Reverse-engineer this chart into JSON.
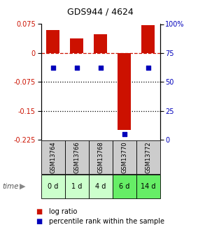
{
  "title": "GDS944 / 4624",
  "categories": [
    "GSM13764",
    "GSM13766",
    "GSM13768",
    "GSM13770",
    "GSM13772"
  ],
  "time_labels": [
    "0 d",
    "1 d",
    "4 d",
    "6 d",
    "14 d"
  ],
  "log_ratios": [
    0.06,
    0.038,
    0.048,
    -0.2,
    0.073
  ],
  "percentile_ranks": [
    62,
    62,
    62,
    5,
    62
  ],
  "ylim_left": [
    -0.225,
    0.075
  ],
  "ylim_right": [
    0,
    100
  ],
  "yticks_left": [
    0.075,
    0,
    -0.075,
    -0.15,
    -0.225
  ],
  "yticks_right": [
    100,
    75,
    50,
    25,
    0
  ],
  "bar_color": "#cc1100",
  "dot_color": "#0000bb",
  "zero_line_color": "#cc1100",
  "grid_color": "#000000",
  "header_bg": "#cccccc",
  "legend_box_red": "#cc1100",
  "legend_box_blue": "#0000bb",
  "time_colors": [
    "#ccffcc",
    "#ccffcc",
    "#ccffcc",
    "#66ee66",
    "#66ee66"
  ]
}
